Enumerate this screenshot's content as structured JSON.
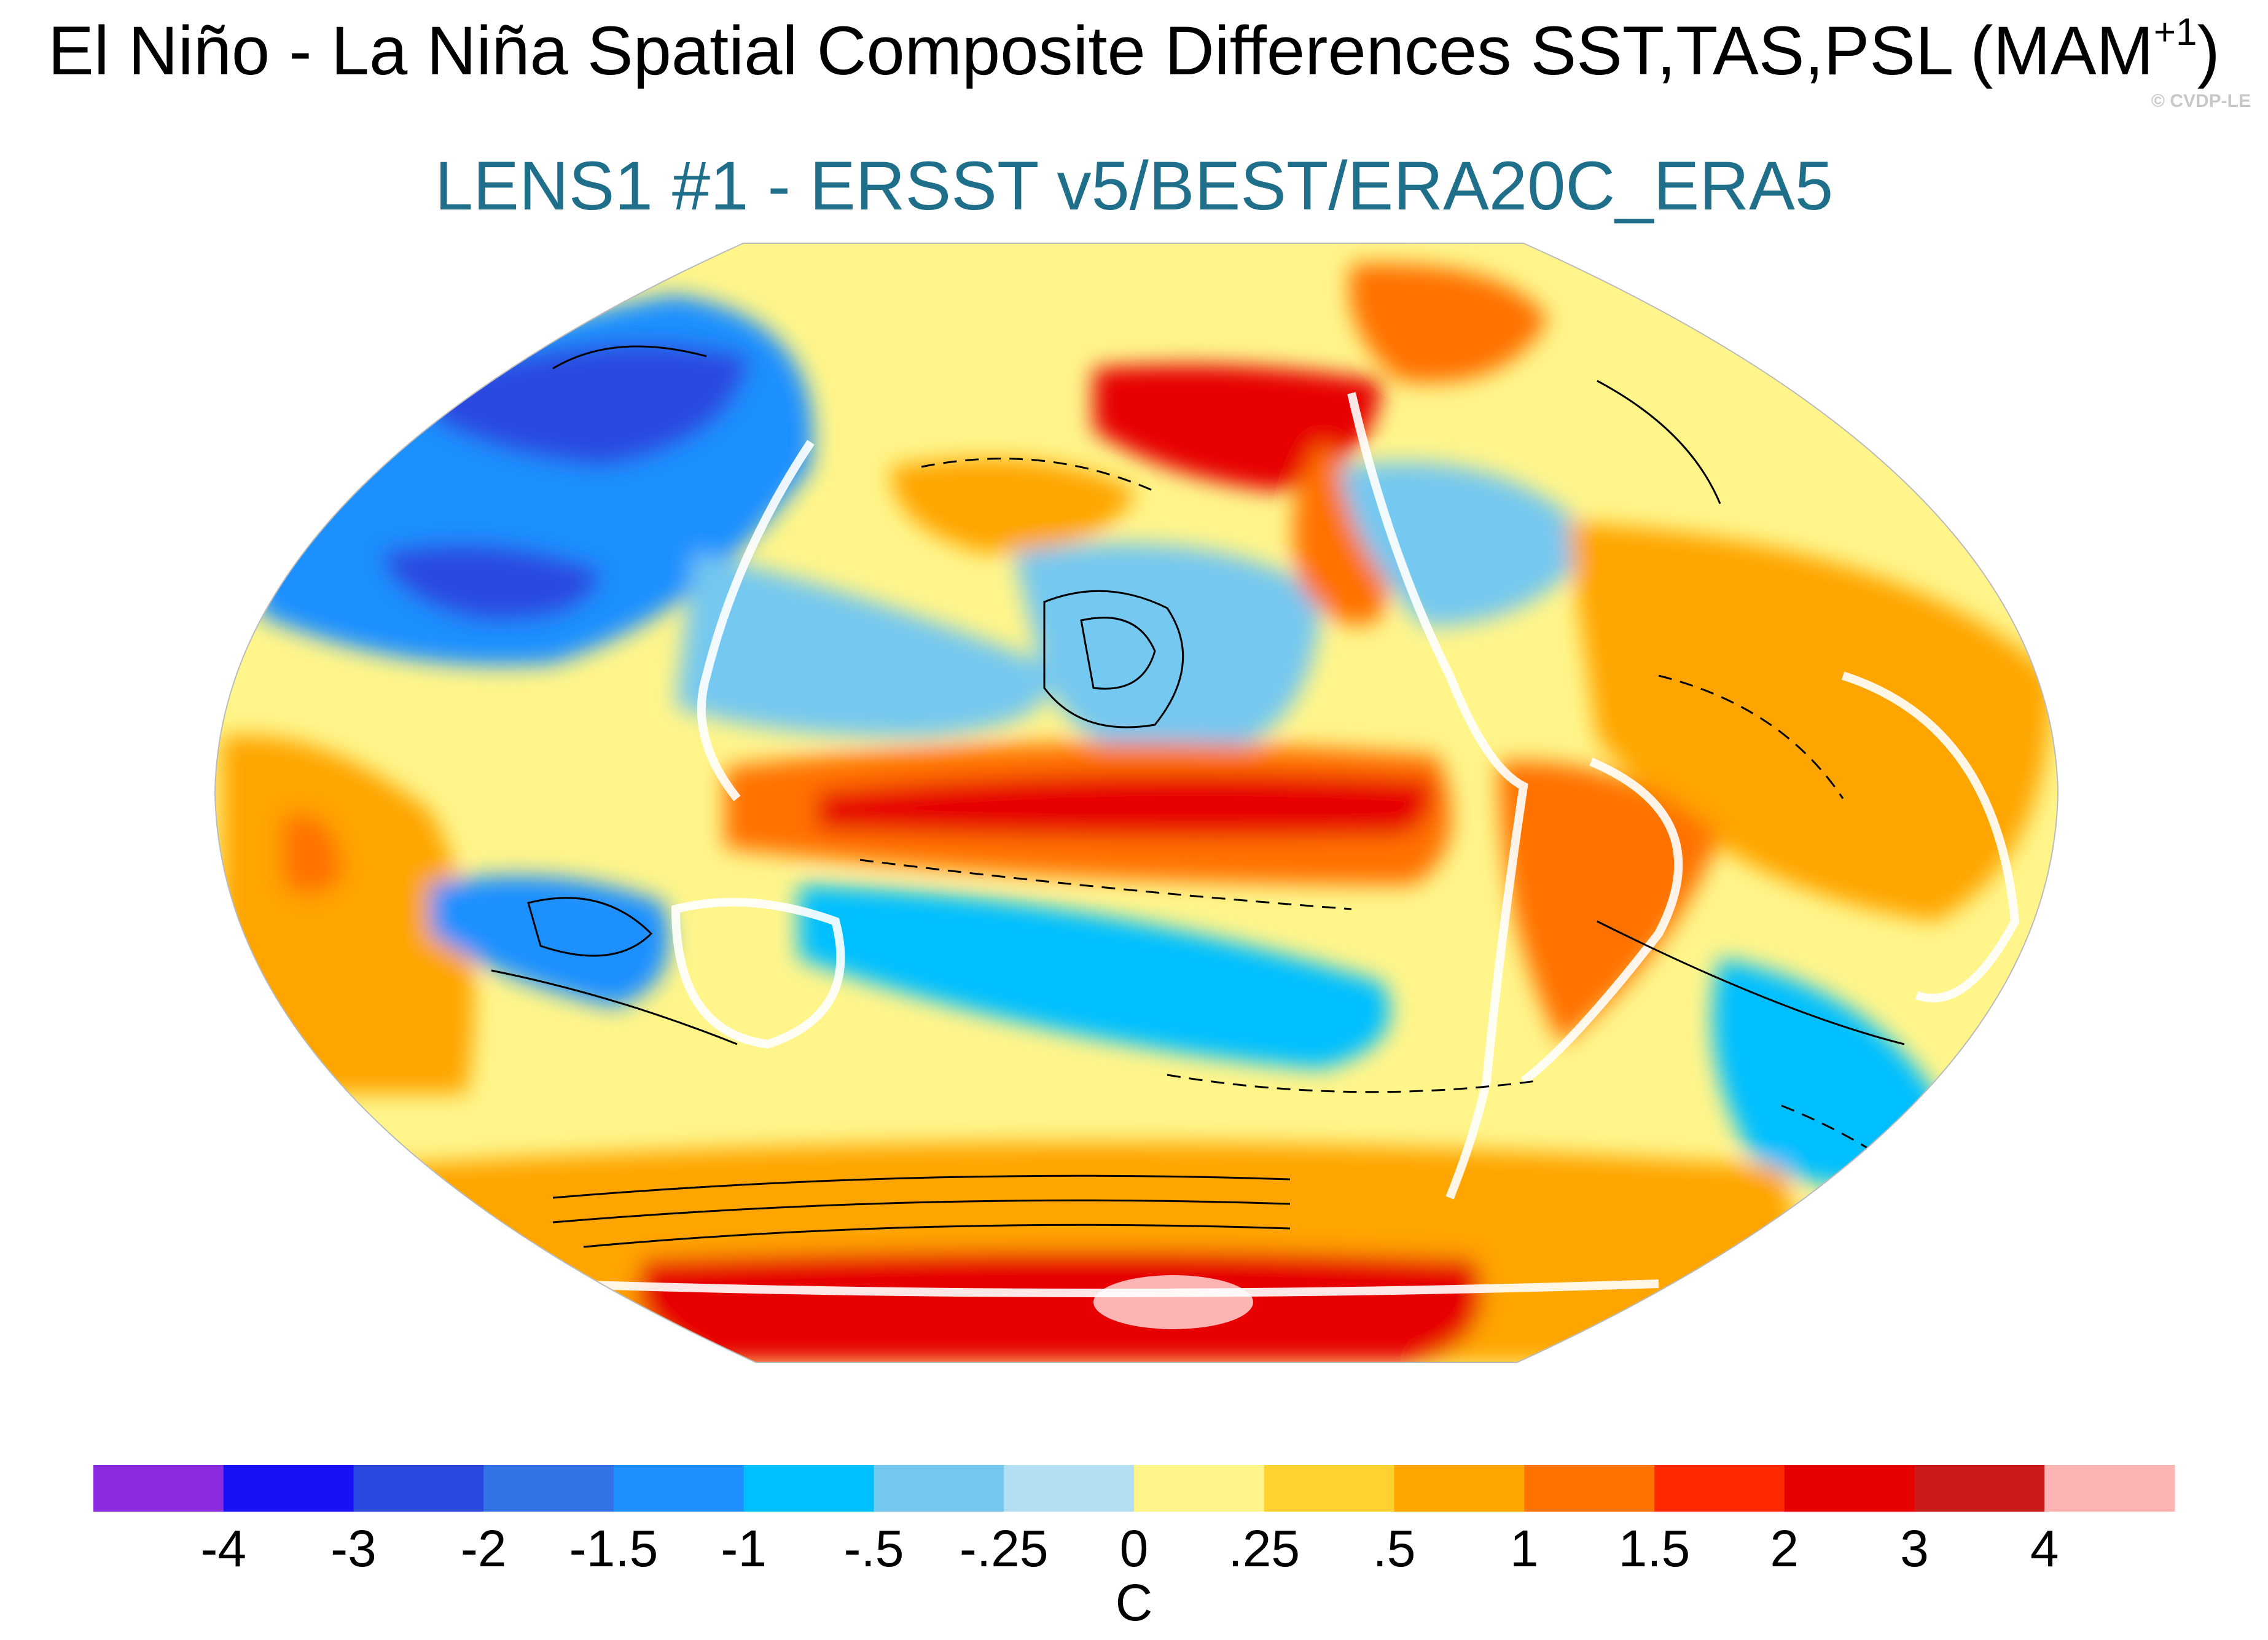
{
  "title": {
    "main": "El Niño - La Niña Spatial Composite Differences SST,TAS,PSL (MAM",
    "superscript": "+1",
    "close": ")",
    "subtitle": "LENS1 #1 - ERSST v5/BEST/ERA20C_ERA5",
    "copyright": "© CVDP-LE"
  },
  "colorbar": {
    "unit": "C",
    "tick_labels": [
      "-4",
      "-3",
      "-2",
      "-1.5",
      "-1",
      "-.5",
      "-.25",
      "0",
      ".25",
      ".5",
      "1",
      "1.5",
      "2",
      "3",
      "4"
    ],
    "colors": [
      "#8a2be2",
      "#1a10f5",
      "#2b48e0",
      "#3273e8",
      "#1e90ff",
      "#00bfff",
      "#74c8f0",
      "#b3dff2",
      "#fff58a",
      "#ffd22e",
      "#ffa500",
      "#ff7200",
      "#ff2a00",
      "#e60000",
      "#cc1a1a",
      "#ffb4b4"
    ]
  },
  "map": {
    "projection": "robinson",
    "variables": [
      "SST",
      "TAS",
      "PSL"
    ],
    "season": "MAM+1",
    "ocean_base_color": "#fff58a",
    "features": [
      {
        "name": "nino-tongue-warm",
        "color": "#e60000"
      },
      {
        "name": "nino-tongue-orange",
        "color": "#ff7200"
      },
      {
        "name": "southern-ocean-warm",
        "color": "#e60000"
      },
      {
        "name": "antarctic-peak",
        "color": "#ffb4b4"
      },
      {
        "name": "north-pacific-cool",
        "color": "#74c8f0"
      },
      {
        "name": "west-pacific-cool",
        "color": "#74c8f0"
      },
      {
        "name": "south-pacific-cool",
        "color": "#00bfff"
      },
      {
        "name": "eurasia-cold",
        "color": "#1e90ff"
      },
      {
        "name": "siberia-cold",
        "color": "#2b48e0"
      },
      {
        "name": "alaska-canada-warm",
        "color": "#e60000"
      },
      {
        "name": "south-america-warm",
        "color": "#ff7200"
      },
      {
        "name": "atlantic-warm",
        "color": "#ffa500"
      },
      {
        "name": "indian-ocean-cool",
        "color": "#1e90ff"
      },
      {
        "name": "africa-warm",
        "color": "#ffa500"
      }
    ]
  }
}
